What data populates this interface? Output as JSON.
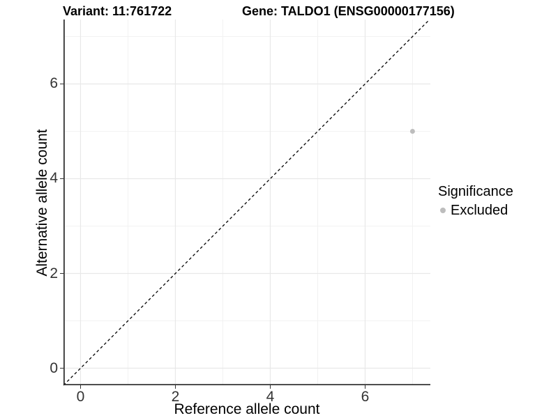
{
  "header": {
    "title_left": "Variant: 11:761722",
    "title_right": "Gene: TALDO1 (ENSG00000177156)"
  },
  "axes": {
    "x_label": "Reference allele count",
    "y_label": "Alternative allele count",
    "x_tick_labels": [
      "0",
      "2",
      "4",
      "6"
    ],
    "y_tick_labels": [
      "0",
      "2",
      "4",
      "6"
    ]
  },
  "legend": {
    "title": "Significance",
    "items": [
      {
        "label": "Excluded",
        "color": "#bdbdbd"
      }
    ]
  },
  "chart_data": {
    "type": "scatter",
    "title": "Variant: 11:761722 | Gene: TALDO1 (ENSG00000177156)",
    "xlabel": "Reference allele count",
    "ylabel": "Alternative allele count",
    "xlim": [
      -0.36,
      7.376
    ],
    "ylim": [
      -0.36,
      7.36
    ],
    "x_ticks": [
      0,
      2,
      4,
      6
    ],
    "y_ticks": [
      0,
      2,
      4,
      6
    ],
    "x_minor_ticks": [
      1,
      3,
      5,
      7
    ],
    "y_minor_ticks": [
      1,
      3,
      5,
      7
    ],
    "grid": true,
    "legend_position": "right",
    "series": [
      {
        "name": "Excluded",
        "color": "#bdbdbd",
        "marker_radius": 3.5,
        "points": [
          [
            7,
            5
          ]
        ]
      }
    ],
    "reference_line": {
      "equation": "y = x",
      "style": "dashed",
      "color": "#000000",
      "from": [
        -0.36,
        -0.36
      ],
      "to": [
        7.36,
        7.36
      ]
    }
  },
  "colors": {
    "background": "#ffffff",
    "grid_major": "#e8e8e8",
    "grid_minor": "#f2f2f2",
    "axis_line": "#333333",
    "tick_text": "#333333",
    "point": "#bdbdbd",
    "ref_line": "#000000"
  }
}
